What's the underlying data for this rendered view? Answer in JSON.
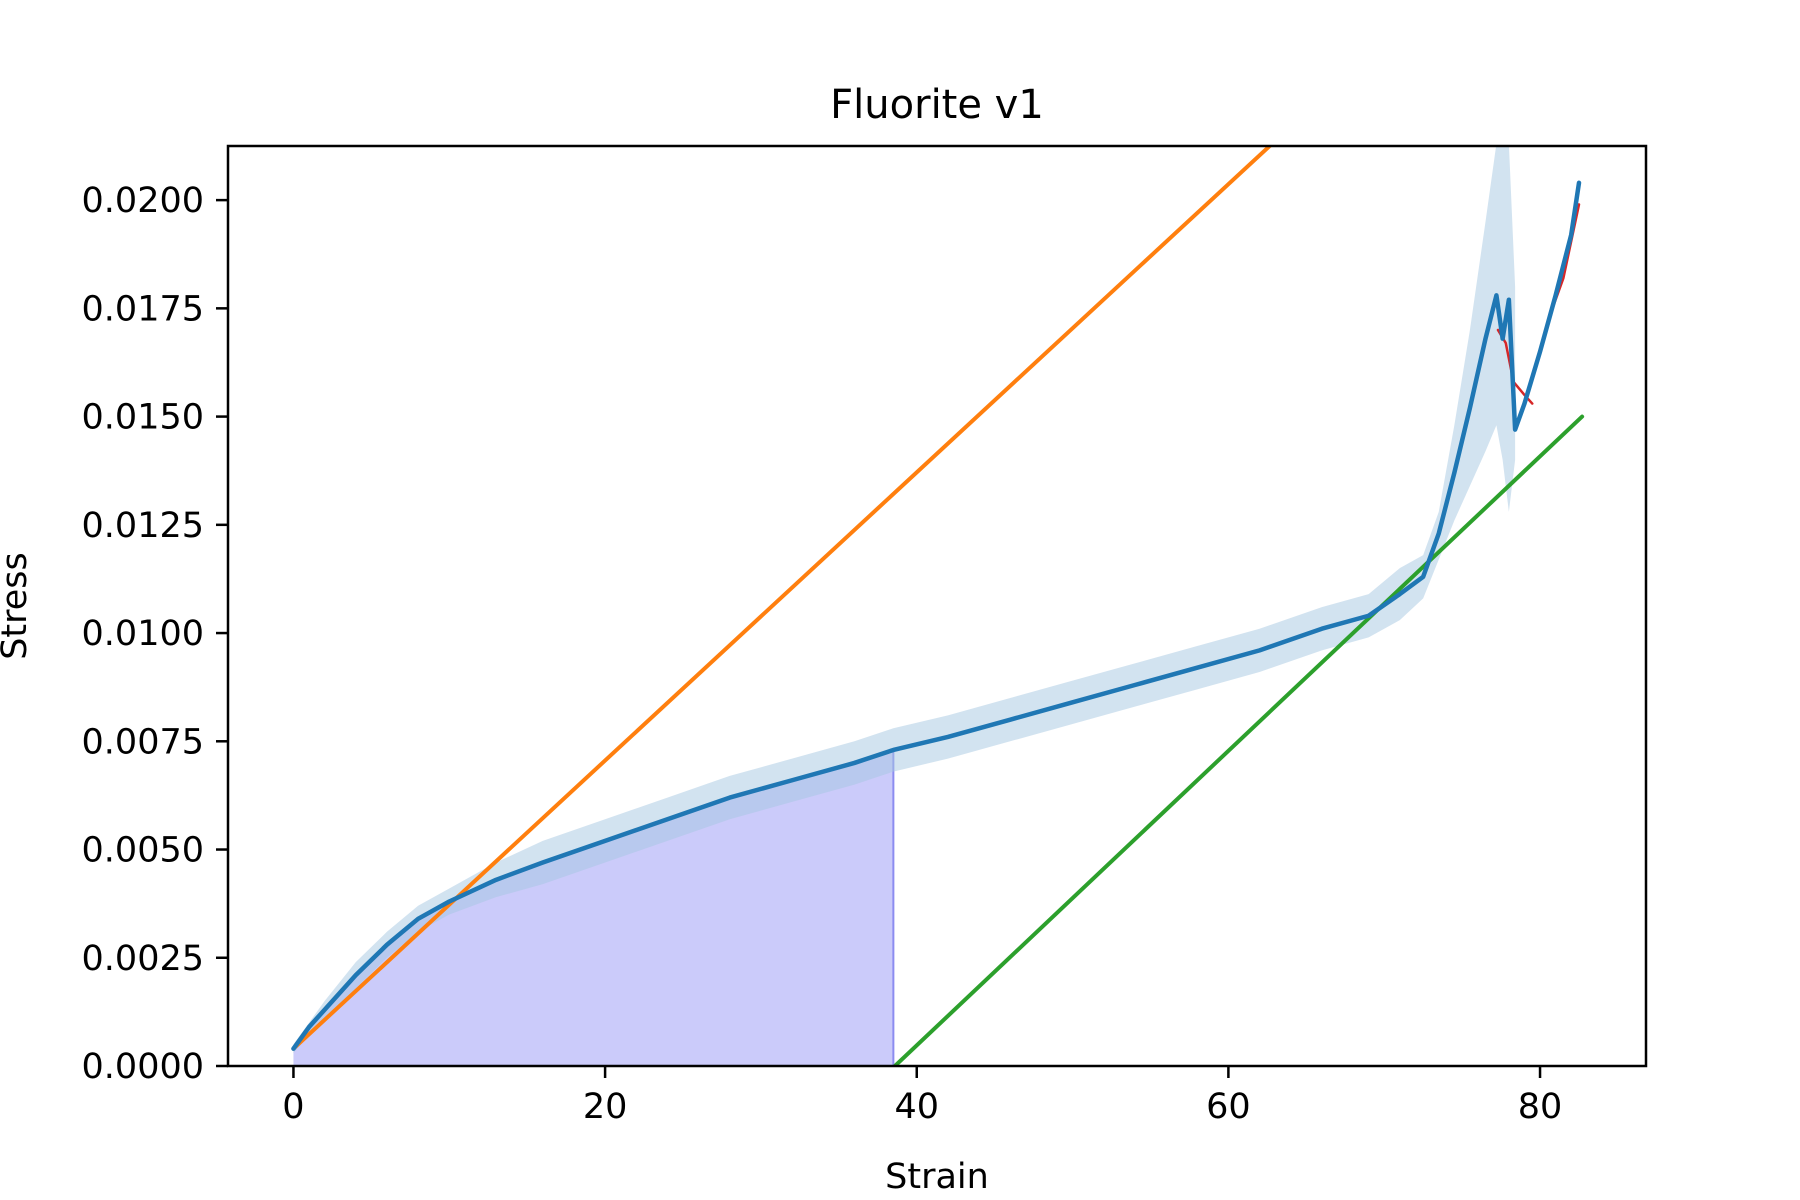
{
  "chart_data": {
    "type": "line",
    "title": "Fluorite v1",
    "xlabel": "Strain",
    "ylabel": "Stress",
    "xlim": [
      -4.2,
      86.8
    ],
    "ylim": [
      0,
      0.02125
    ],
    "grid": false,
    "legend": "none",
    "x_ticks": [
      0,
      20,
      40,
      60,
      80
    ],
    "x_tick_labels": [
      "0",
      "20",
      "40",
      "60",
      "80"
    ],
    "y_ticks": [
      0,
      0.0025,
      0.005,
      0.0075,
      0.01,
      0.0125,
      0.015,
      0.0175,
      0.02
    ],
    "y_tick_labels": [
      "0.0000",
      "0.0025",
      "0.0050",
      "0.0075",
      "0.0100",
      "0.0125",
      "0.0150",
      "0.0175",
      "0.0200"
    ],
    "colors": {
      "mean": "#1f77b4",
      "band": "#a6c8e2",
      "fill": "#c8c8fa",
      "fill_edge": "#8c8cf0",
      "orange": "#ff7f0e",
      "green": "#2ca02c",
      "red": "#d62728"
    },
    "series": [
      {
        "x": [
          0,
          1,
          2,
          4,
          6,
          8,
          10,
          13,
          16,
          20,
          24,
          28,
          32,
          36,
          38.5,
          42,
          46,
          50,
          54,
          58,
          62,
          66,
          69,
          71,
          72.5,
          73.5,
          74.5,
          75.5,
          76.5,
          77.2,
          77.6,
          78,
          78.4,
          79,
          80,
          81,
          82,
          82.5
        ],
        "y": [
          0.0004,
          0.0009,
          0.0013,
          0.0021,
          0.0028,
          0.0034,
          0.0038,
          0.0043,
          0.0047,
          0.0052,
          0.0057,
          0.0062,
          0.0066,
          0.007,
          0.0073,
          0.0076,
          0.008,
          0.0084,
          0.0088,
          0.0092,
          0.0096,
          0.0101,
          0.0104,
          0.0109,
          0.0113,
          0.0123,
          0.0137,
          0.0152,
          0.0168,
          0.0178,
          0.0168,
          0.0177,
          0.0147,
          0.0153,
          0.0165,
          0.0178,
          0.0192,
          0.0204
        ]
      },
      {
        "x": [
          77.3,
          77.8,
          78.3,
          79,
          79.5
        ],
        "y": [
          0.017,
          0.0167,
          0.0158,
          0.0155,
          0.0153
        ]
      },
      {
        "x": [
          80.5,
          81.5,
          82.5
        ],
        "y": [
          0.0172,
          0.0182,
          0.0199
        ]
      },
      {
        "x": [
          0,
          62.8
        ],
        "y": [
          0.0004,
          0.0213
        ]
      },
      {
        "x": [
          38.6,
          82.7
        ],
        "y": [
          0,
          0.015
        ]
      }
    ],
    "band": {
      "x": [
        0,
        2,
        4,
        6,
        8,
        10,
        13,
        16,
        20,
        24,
        28,
        32,
        36,
        38.5,
        42,
        46,
        50,
        54,
        58,
        62,
        66,
        69,
        71,
        72.5,
        73.5,
        74.5,
        75.5,
        76.5,
        77.2,
        77.6,
        78,
        78.4
      ],
      "upper": [
        0.0005,
        0.0015,
        0.0024,
        0.0031,
        0.0037,
        0.0041,
        0.0047,
        0.0052,
        0.0057,
        0.0062,
        0.0067,
        0.0071,
        0.0075,
        0.0078,
        0.0081,
        0.0085,
        0.0089,
        0.0093,
        0.0097,
        0.0101,
        0.0106,
        0.0109,
        0.0115,
        0.0118,
        0.0128,
        0.0148,
        0.017,
        0.0195,
        0.0213,
        0.0213,
        0.0213,
        0.018
      ],
      "lower": [
        0.0003,
        0.0011,
        0.0018,
        0.0025,
        0.0031,
        0.0035,
        0.0039,
        0.0042,
        0.0047,
        0.0052,
        0.0057,
        0.0061,
        0.0065,
        0.0068,
        0.0071,
        0.0075,
        0.0079,
        0.0083,
        0.0087,
        0.0091,
        0.0096,
        0.0099,
        0.0103,
        0.0108,
        0.0117,
        0.0126,
        0.0134,
        0.0142,
        0.0148,
        0.014,
        0.0128,
        0.014
      ]
    },
    "shaded_area": {
      "x_min": 0,
      "x_max": 38.5
    }
  }
}
